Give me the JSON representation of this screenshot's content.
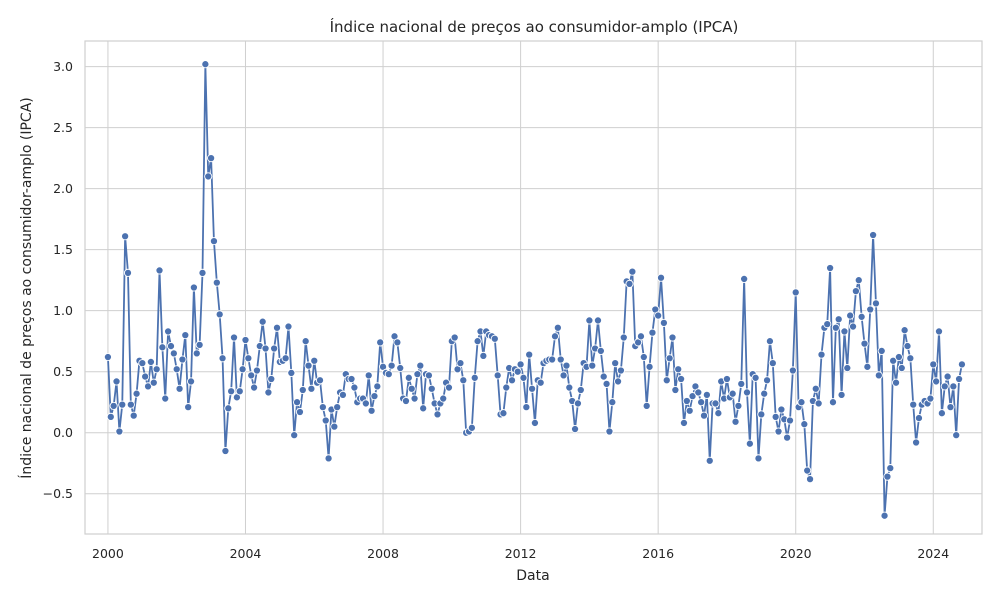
{
  "chart_data": {
    "type": "line",
    "title": "Índice nacional de preços ao consumidor-amplo (IPCA)",
    "xlabel": "Data",
    "ylabel": "Índice nacional de preços ao consumidor-amplo (IPCA)",
    "x_ticks": [
      "2000",
      "2004",
      "2008",
      "2012",
      "2016",
      "2020",
      "2024"
    ],
    "y_ticks": [
      "−0.5",
      "0.0",
      "0.5",
      "1.0",
      "1.5",
      "2.0",
      "2.5",
      "3.0"
    ],
    "xlim": [
      "1999-05",
      "2025-06"
    ],
    "ylim": [
      -0.83,
      3.21
    ],
    "grid": true,
    "color": "#4c72b0",
    "x_start": "2000-01",
    "frequency": "monthly",
    "series": [
      {
        "values": [
          0.62,
          0.13,
          0.22,
          0.42,
          0.01,
          0.23,
          1.61,
          1.31,
          0.23,
          0.14,
          0.32,
          0.59,
          0.57,
          0.46,
          0.38,
          0.58,
          0.41,
          0.52,
          1.33,
          0.7,
          0.28,
          0.83,
          0.71,
          0.65,
          0.52,
          0.36,
          0.6,
          0.8,
          0.21,
          0.42,
          1.19,
          0.65,
          0.72,
          1.31,
          3.02,
          2.1,
          2.25,
          1.57,
          1.23,
          0.97,
          0.61,
          -0.15,
          0.2,
          0.34,
          0.78,
          0.29,
          0.34,
          0.52,
          0.76,
          0.61,
          0.47,
          0.37,
          0.51,
          0.71,
          0.91,
          0.69,
          0.33,
          0.44,
          0.69,
          0.86,
          0.58,
          0.59,
          0.61,
          0.87,
          0.49,
          -0.02,
          0.25,
          0.17,
          0.35,
          0.75,
          0.55,
          0.36,
          0.59,
          0.41,
          0.43,
          0.21,
          0.1,
          -0.21,
          0.19,
          0.05,
          0.21,
          0.33,
          0.31,
          0.48,
          0.44,
          0.44,
          0.37,
          0.25,
          0.28,
          0.28,
          0.24,
          0.47,
          0.18,
          0.3,
          0.38,
          0.74,
          0.54,
          0.49,
          0.48,
          0.55,
          0.79,
          0.74,
          0.53,
          0.28,
          0.26,
          0.45,
          0.36,
          0.28,
          0.48,
          0.55,
          0.2,
          0.48,
          0.47,
          0.36,
          0.24,
          0.15,
          0.24,
          0.28,
          0.41,
          0.37,
          0.75,
          0.78,
          0.52,
          0.57,
          0.43,
          0.0,
          0.01,
          0.04,
          0.45,
          0.75,
          0.83,
          0.63,
          0.83,
          0.8,
          0.79,
          0.77,
          0.47,
          0.15,
          0.16,
          0.37,
          0.53,
          0.43,
          0.52,
          0.5,
          0.56,
          0.45,
          0.21,
          0.64,
          0.36,
          0.08,
          0.43,
          0.41,
          0.57,
          0.59,
          0.6,
          0.6,
          0.79,
          0.86,
          0.6,
          0.47,
          0.55,
          0.37,
          0.26,
          0.03,
          0.24,
          0.35,
          0.57,
          0.54,
          0.92,
          0.55,
          0.69,
          0.92,
          0.67,
          0.46,
          0.4,
          0.01,
          0.25,
          0.57,
          0.42,
          0.51,
          0.78,
          1.24,
          1.22,
          1.32,
          0.71,
          0.74,
          0.79,
          0.62,
          0.22,
          0.54,
          0.82,
          1.01,
          0.96,
          1.27,
          0.9,
          0.43,
          0.61,
          0.78,
          0.35,
          0.52,
          0.44,
          0.08,
          0.26,
          0.18,
          0.3,
          0.38,
          0.33,
          0.25,
          0.14,
          0.31,
          -0.23,
          0.24,
          0.24,
          0.16,
          0.42,
          0.28,
          0.44,
          0.29,
          0.32,
          0.09,
          0.22,
          0.4,
          1.26,
          0.33,
          -0.09,
          0.48,
          0.45,
          -0.21,
          0.15,
          0.32,
          0.43,
          0.75,
          0.57,
          0.13,
          0.01,
          0.19,
          0.11,
          -0.04,
          0.1,
          0.51,
          1.15,
          0.21,
          0.25,
          0.07,
          -0.31,
          -0.38,
          0.26,
          0.36,
          0.24,
          0.64,
          0.86,
          0.89,
          1.35,
          0.25,
          0.86,
          0.93,
          0.31,
          0.83,
          0.53,
          0.96,
          0.87,
          1.16,
          1.25,
          0.95,
          0.73,
          0.54,
          1.01,
          1.62,
          1.06,
          0.47,
          0.67,
          -0.68,
          -0.36,
          -0.29,
          0.59,
          0.41,
          0.62,
          0.53,
          0.84,
          0.71,
          0.61,
          0.23,
          -0.08,
          0.12,
          0.23,
          0.26,
          0.24,
          0.28,
          0.56,
          0.42,
          0.83,
          0.16,
          0.38,
          0.46,
          0.21,
          0.38,
          -0.02,
          0.44,
          0.56
        ]
      }
    ]
  }
}
